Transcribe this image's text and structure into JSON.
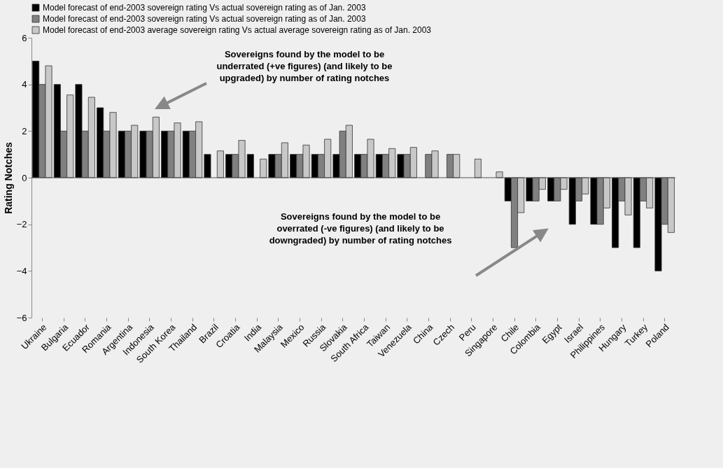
{
  "chart_data": {
    "type": "bar",
    "ylabel": "Rating Notches",
    "categories": [
      "Ukraine",
      "Bulgaria",
      "Ecuador",
      "Romania",
      "Argentina",
      "Indonesia",
      "South Korea",
      "Thailand",
      "Brazil",
      "Croatia",
      "India",
      "Malaysia",
      "Mexico",
      "Russia",
      "Slovakia",
      "South Africa",
      "Taiwan",
      "Venezuela",
      "China",
      "Czech",
      "Peru",
      "Singapore",
      "Chile",
      "Colombia",
      "Egypt",
      "Israel",
      "Philippines",
      "Hungary",
      "Turkey",
      "Poland"
    ],
    "series": [
      {
        "name": "Model forecast of end-2003 sovereign rating Vs actual sovereign rating as of Jan. 2003",
        "color": "#000000",
        "values": [
          5,
          4,
          4,
          3,
          2,
          2,
          2,
          2,
          1,
          1,
          1,
          1,
          1,
          1,
          1,
          1,
          1,
          1,
          null,
          null,
          null,
          null,
          -1,
          -1,
          -1,
          -2,
          -2,
          -3,
          -3,
          -4
        ]
      },
      {
        "name": "Model forecast of end-2003 sovereign rating Vs actual sovereign rating as of Jan. 2003",
        "color": "#808080",
        "values": [
          4,
          2,
          2,
          2,
          2,
          2,
          2,
          2,
          null,
          1,
          null,
          1,
          1,
          1,
          2,
          1,
          1,
          1,
          1,
          1,
          null,
          null,
          -3,
          -1,
          -1,
          -1,
          -2,
          -1,
          -1,
          -2
        ]
      },
      {
        "name": "Model forecast of end-2003 average sovereign rating Vs actual average sovereign rating as of Jan. 2003",
        "color": "#c8c8c8",
        "values": [
          4.8,
          3.55,
          3.45,
          2.8,
          2.25,
          2.6,
          2.35,
          2.4,
          1.15,
          1.6,
          0.8,
          1.5,
          1.4,
          1.65,
          2.25,
          1.65,
          1.25,
          1.3,
          1.15,
          1,
          0.8,
          0.25,
          -1.5,
          -0.5,
          -0.5,
          -0.7,
          -1.3,
          -1.6,
          -1.3,
          -2.35
        ]
      }
    ],
    "ylim": [
      -6,
      6
    ],
    "yticks": [
      -6,
      -4,
      -2,
      0,
      2,
      4,
      6
    ],
    "grid": false,
    "ref_lines": [
      {
        "axis": "y",
        "value": 0
      }
    ],
    "legend": "top",
    "annotations": [
      "Sovereigns found by the model to be\nunderrated (+ve figures) (and likely to be\nupgraded) by number of rating notches",
      "Sovereigns found by the model to be\noverrated (-ve figures) (and likely to be\ndowngraded) by number of rating notches"
    ]
  }
}
